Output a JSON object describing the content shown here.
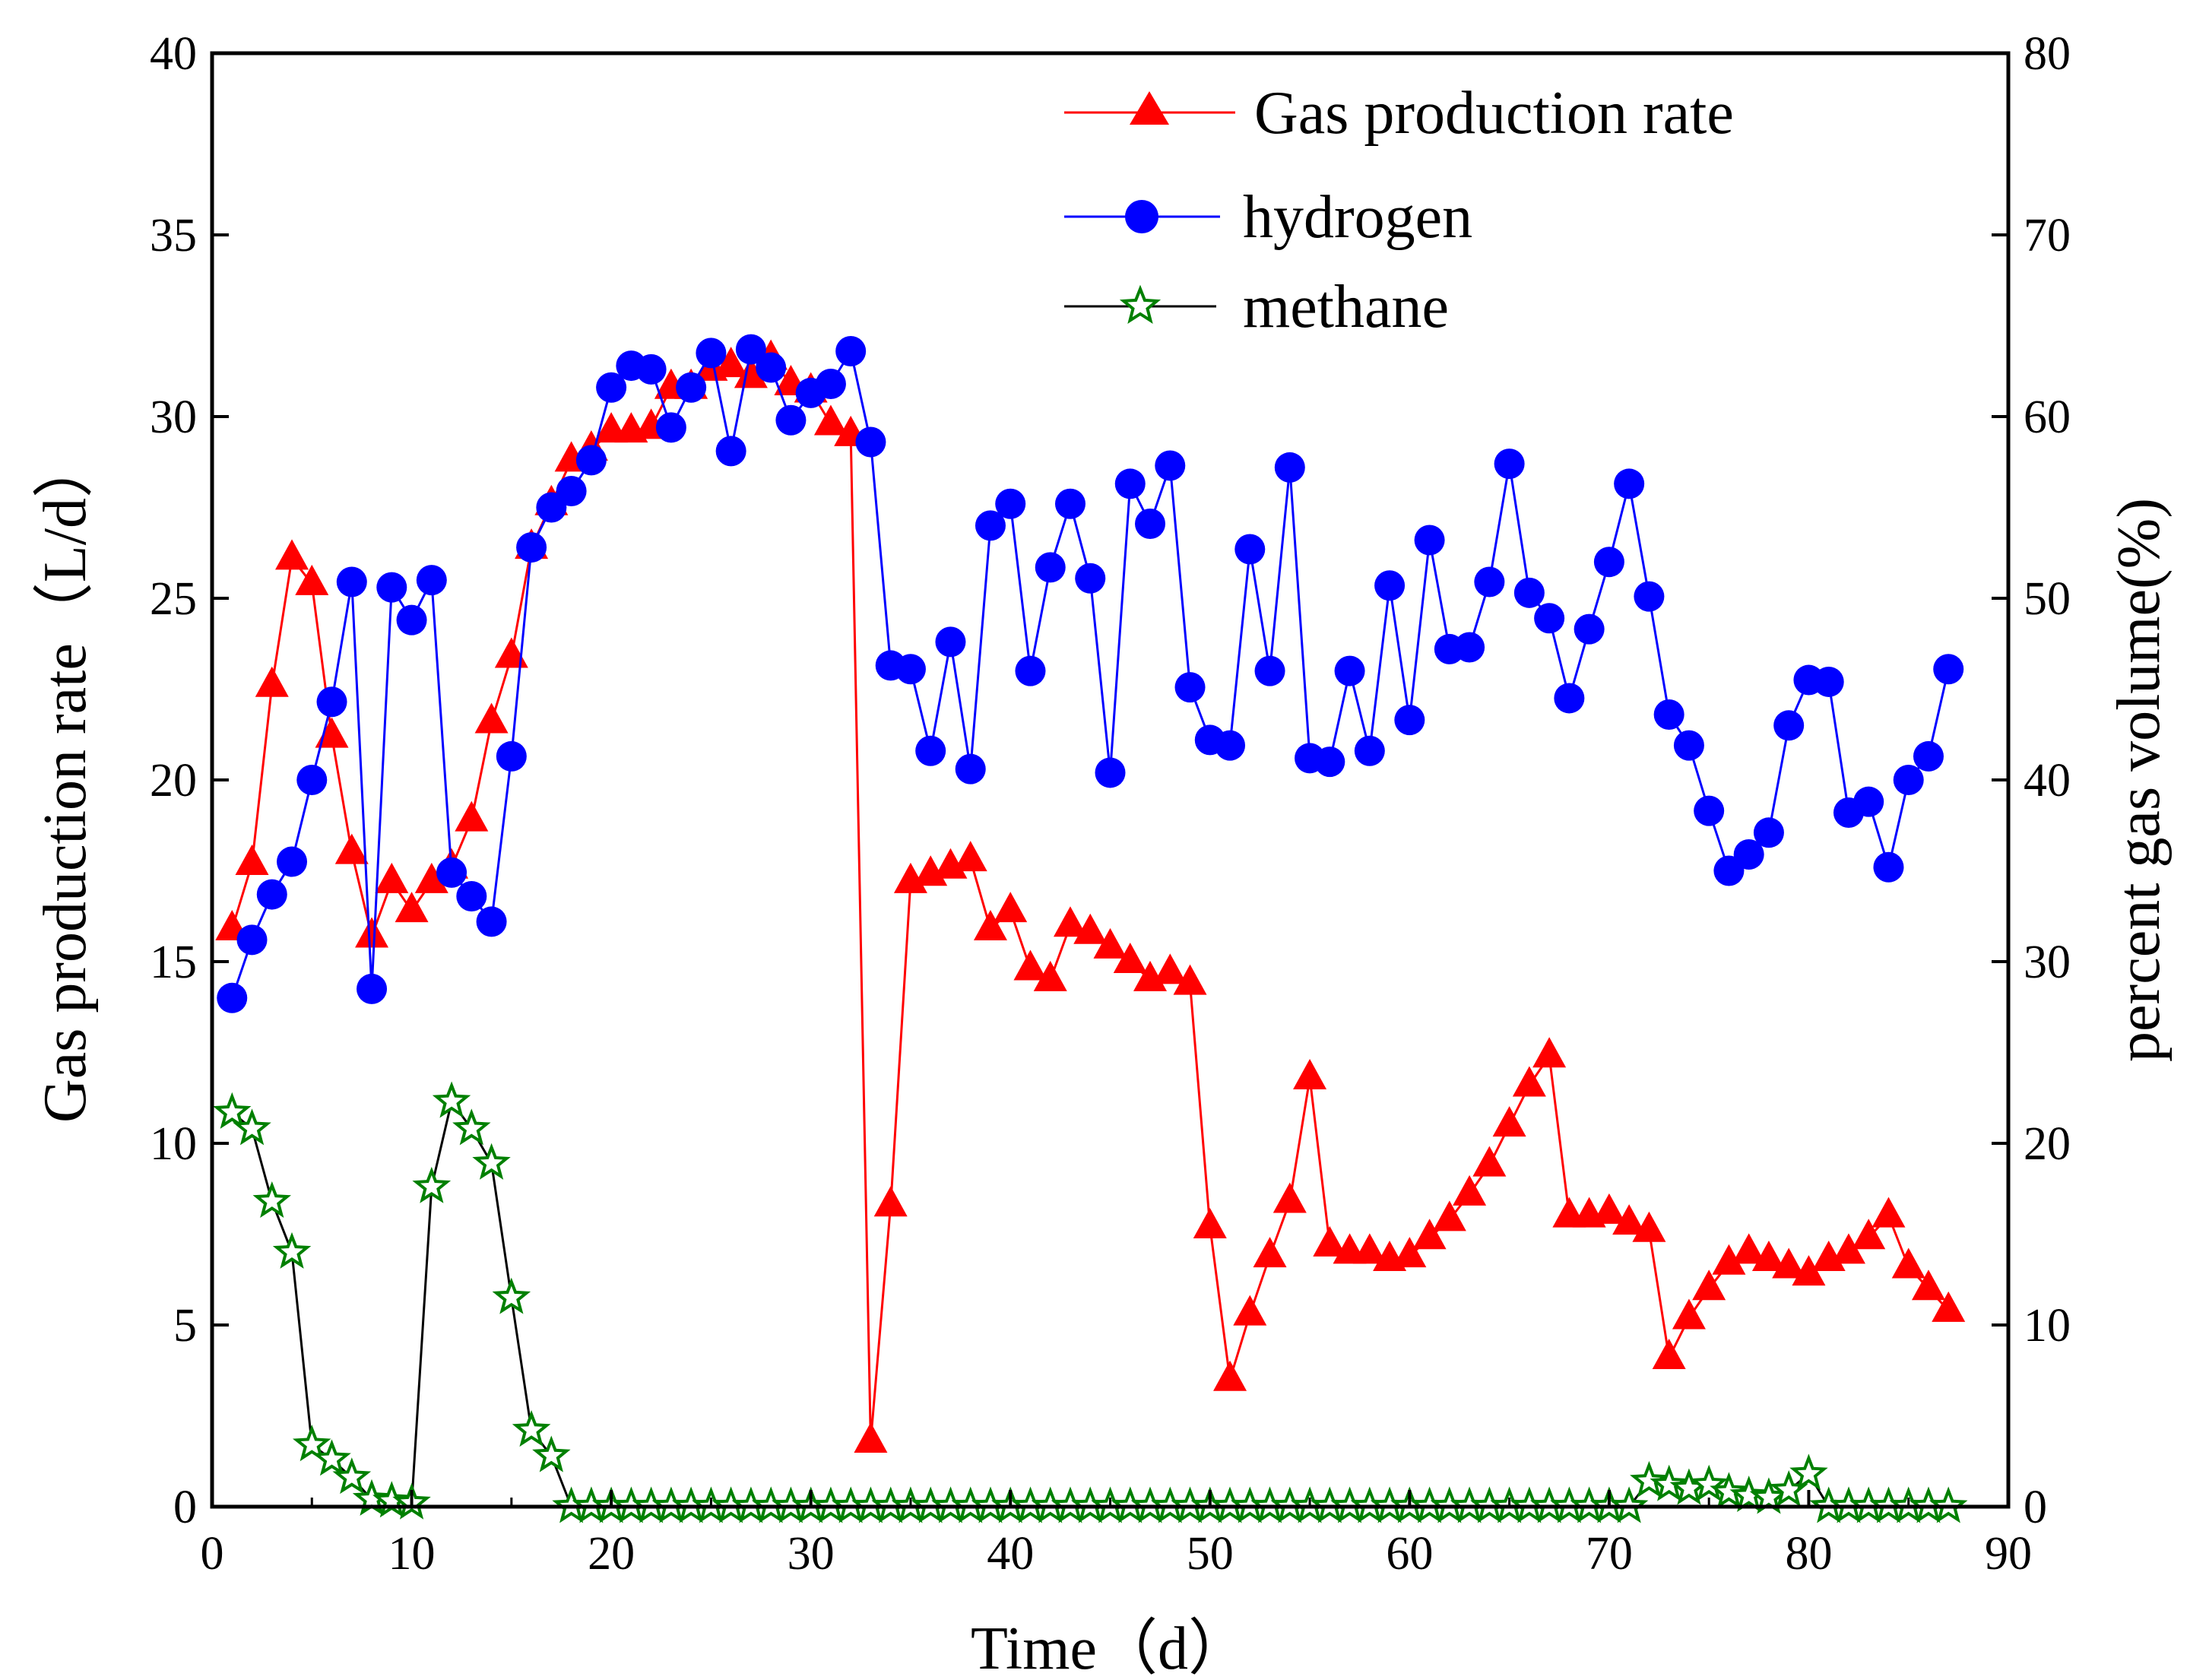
{
  "chart_data": {
    "type": "line",
    "title": "",
    "xlabel": "Time（d）",
    "ylabel": "Gas production rate（L/d）",
    "y2label": "percent gas volume(%)",
    "xlim": [
      0,
      90
    ],
    "ylim": [
      0,
      40
    ],
    "y2lim": [
      0,
      80
    ],
    "xticks": [
      0,
      10,
      20,
      30,
      40,
      50,
      60,
      70,
      80,
      90
    ],
    "yticks": [
      0,
      5,
      10,
      15,
      20,
      25,
      30,
      35,
      40
    ],
    "y2ticks": [
      0,
      10,
      20,
      30,
      40,
      50,
      60,
      70,
      80
    ],
    "grid": false,
    "legend_position": "top-right",
    "series": [
      {
        "name": "Gas production rate",
        "axis": "left",
        "color": "#ff0000",
        "marker": "triangle",
        "x": [
          1,
          2,
          3,
          4,
          5,
          6,
          7,
          8,
          9,
          10,
          11,
          12,
          13,
          14,
          15,
          16,
          17,
          18,
          19,
          20,
          21,
          22,
          23,
          24,
          25,
          26,
          27,
          28,
          29,
          30,
          31,
          32,
          33,
          34,
          35,
          36,
          37,
          38,
          39,
          40,
          41,
          42,
          43,
          44,
          45,
          46,
          47,
          48,
          49,
          50,
          51,
          52,
          53,
          54,
          55,
          56,
          57,
          58,
          59,
          60,
          61,
          62,
          63,
          64,
          65,
          66,
          67,
          68,
          69,
          70,
          71,
          72,
          73,
          74,
          75,
          76,
          77,
          78,
          79,
          80,
          81,
          82,
          83,
          84,
          85,
          86,
          87
        ],
        "values": [
          15.9,
          17.7,
          22.6,
          26.1,
          25.4,
          21.2,
          18.0,
          15.7,
          17.2,
          16.4,
          17.2,
          17.6,
          18.9,
          21.6,
          23.4,
          26.4,
          27.6,
          28.8,
          29.1,
          29.6,
          29.6,
          29.7,
          30.8,
          30.8,
          31.3,
          31.4,
          31.1,
          31.6,
          30.9,
          30.7,
          29.8,
          29.5,
          1.8,
          8.3,
          17.2,
          17.4,
          17.6,
          17.8,
          15.9,
          16.4,
          14.8,
          14.5,
          16.0,
          15.8,
          15.4,
          15.0,
          14.5,
          14.7,
          14.4,
          7.7,
          3.5,
          5.3,
          6.9,
          8.4,
          11.8,
          7.2,
          7.0,
          7.0,
          6.8,
          6.9,
          7.4,
          7.9,
          8.6,
          9.4,
          10.5,
          11.6,
          12.4,
          8.0,
          8.0,
          8.1,
          7.8,
          7.6,
          4.1,
          5.2,
          6.0,
          6.7,
          7.0,
          6.8,
          6.6,
          6.4,
          6.8,
          7.0,
          7.4,
          8.0,
          6.6,
          6.0,
          5.4
        ]
      },
      {
        "name": "hydrogen",
        "axis": "right",
        "color": "#0000ff",
        "marker": "circle",
        "x": [
          1,
          2,
          3,
          4,
          5,
          6,
          7,
          8,
          9,
          10,
          11,
          12,
          13,
          14,
          15,
          16,
          17,
          18,
          19,
          20,
          21,
          22,
          23,
          24,
          25,
          26,
          27,
          28,
          29,
          30,
          31,
          32,
          33,
          34,
          35,
          36,
          37,
          38,
          39,
          40,
          41,
          42,
          43,
          44,
          45,
          46,
          47,
          48,
          49,
          50,
          51,
          52,
          53,
          54,
          55,
          56,
          57,
          58,
          59,
          60,
          61,
          62,
          63,
          64,
          65,
          66,
          67,
          68,
          69,
          70,
          71,
          72,
          73,
          74,
          75,
          76,
          77,
          78,
          79,
          80,
          81,
          82,
          83,
          84,
          85,
          86,
          87
        ],
        "values": [
          28.0,
          31.2,
          33.7,
          35.5,
          40.0,
          44.3,
          50.9,
          28.5,
          50.6,
          48.8,
          51.0,
          34.9,
          33.6,
          32.2,
          41.3,
          52.8,
          55.0,
          55.9,
          57.6,
          61.6,
          62.8,
          62.6,
          59.4,
          61.6,
          63.5,
          58.1,
          63.7,
          62.7,
          59.8,
          61.3,
          61.8,
          63.6,
          58.6,
          46.3,
          46.1,
          41.6,
          47.6,
          40.6,
          54.0,
          55.2,
          46.0,
          51.7,
          55.2,
          51.1,
          40.4,
          56.3,
          54.1,
          57.3,
          45.1,
          42.2,
          41.9,
          52.7,
          46.0,
          57.2,
          41.2,
          41.0,
          46.0,
          41.6,
          50.7,
          43.3,
          53.2,
          47.2,
          47.3,
          50.9,
          57.4,
          50.3,
          48.9,
          44.5,
          48.3,
          52.0,
          56.3,
          50.1,
          43.6,
          41.9,
          38.3,
          35.0,
          35.9,
          37.1,
          43.0,
          45.5,
          45.4,
          38.2,
          38.8,
          35.2,
          40.0,
          41.3,
          46.1
        ]
      },
      {
        "name": "methane",
        "axis": "right",
        "color": "#008000",
        "marker": "star",
        "x": [
          1,
          2,
          3,
          4,
          5,
          6,
          7,
          8,
          9,
          10,
          11,
          12,
          13,
          14,
          15,
          16,
          17,
          18,
          19,
          20,
          21,
          22,
          23,
          24,
          25,
          26,
          27,
          28,
          29,
          30,
          31,
          32,
          33,
          34,
          35,
          36,
          37,
          38,
          39,
          40,
          41,
          42,
          43,
          44,
          45,
          46,
          47,
          48,
          49,
          50,
          51,
          52,
          53,
          54,
          55,
          56,
          57,
          58,
          59,
          60,
          61,
          62,
          63,
          64,
          65,
          66,
          67,
          68,
          69,
          70,
          71,
          72,
          73,
          74,
          75,
          76,
          77,
          78,
          79,
          80,
          81,
          82,
          83,
          84,
          85,
          86,
          87
        ],
        "values": [
          21.7,
          20.8,
          16.8,
          14.0,
          3.4,
          2.6,
          1.6,
          0.4,
          0.3,
          0.2,
          17.6,
          22.3,
          20.8,
          18.9,
          11.5,
          4.2,
          2.8,
          0,
          0,
          0,
          0,
          0,
          0,
          0,
          0,
          0,
          0,
          0,
          0,
          0,
          0,
          0,
          0,
          0,
          0,
          0,
          0,
          0,
          0,
          0,
          0,
          0,
          0,
          0,
          0,
          0,
          0,
          0,
          0,
          0,
          0,
          0,
          0,
          0,
          0,
          0,
          0,
          0,
          0,
          0,
          0,
          0,
          0,
          0,
          0,
          0,
          0,
          0,
          0,
          0,
          0,
          1.4,
          1.2,
          1.0,
          1.2,
          0.8,
          0.6,
          0.5,
          0.9,
          1.8,
          0,
          0,
          0,
          0,
          0,
          0,
          0
        ]
      }
    ]
  }
}
